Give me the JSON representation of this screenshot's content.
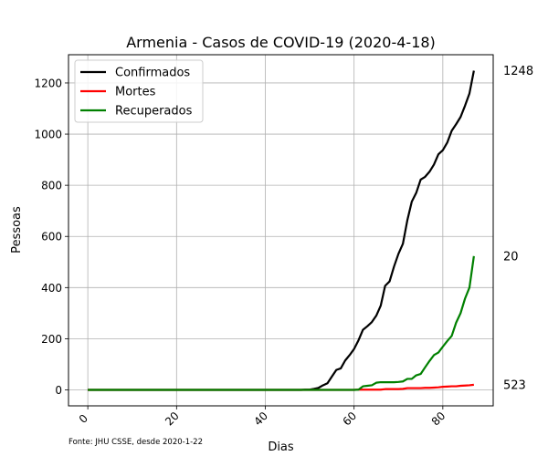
{
  "chart_data": {
    "type": "line",
    "title": "Armenia - Casos de COVID-19 (2020-4-18)",
    "xlabel": "Dias",
    "ylabel": "Pessoas",
    "xlim": [
      -4.35,
      91.35
    ],
    "ylim": [
      -62.4,
      1310.4
    ],
    "xticks": [
      0,
      20,
      40,
      60,
      80
    ],
    "yticks": [
      0,
      200,
      400,
      600,
      800,
      1000,
      1200
    ],
    "grid": true,
    "legend_position": "top-left",
    "source_note": "Fonte: JHU CSSE, desde 2020-1-22",
    "end_labels": [
      "1248",
      "523",
      "20"
    ],
    "series": [
      {
        "name": "Confirmados",
        "color": "#000000",
        "x": [
          0,
          10,
          20,
          30,
          40,
          45,
          48,
          49,
          50,
          51,
          52,
          53,
          54,
          55,
          56,
          57,
          58,
          59,
          60,
          61,
          62,
          63,
          64,
          65,
          66,
          67,
          68,
          69,
          70,
          71,
          72,
          73,
          74,
          75,
          76,
          77,
          78,
          79,
          80,
          81,
          82,
          83,
          84,
          85,
          86,
          87
        ],
        "y": [
          0,
          0,
          0,
          0,
          0,
          0,
          0,
          1,
          1,
          4,
          8,
          18,
          26,
          52,
          78,
          84,
          115,
          136,
          160,
          194,
          235,
          249,
          265,
          290,
          329,
          407,
          424,
          482,
          532,
          571,
          663,
          736,
          770,
          822,
          833,
          853,
          881,
          921,
          937,
          967,
          1013,
          1039,
          1067,
          1111,
          1159,
          1248
        ]
      },
      {
        "name": "Mortes",
        "color": "#ff0000",
        "x": [
          0,
          60,
          61,
          62,
          63,
          64,
          65,
          66,
          67,
          68,
          69,
          70,
          71,
          72,
          73,
          74,
          75,
          76,
          77,
          78,
          79,
          80,
          81,
          82,
          83,
          84,
          85,
          86,
          87
        ],
        "y": [
          0,
          0,
          1,
          1,
          1,
          1,
          1,
          1,
          3,
          3,
          3,
          3,
          4,
          7,
          7,
          7,
          7,
          8,
          8,
          9,
          10,
          12,
          13,
          14,
          14,
          16,
          17,
          18,
          20
        ]
      },
      {
        "name": "Recuperados",
        "color": "#008000",
        "x": [
          0,
          60,
          61,
          62,
          63,
          64,
          65,
          66,
          67,
          68,
          69,
          70,
          71,
          72,
          73,
          74,
          75,
          76,
          77,
          78,
          79,
          80,
          81,
          82,
          83,
          84,
          85,
          86,
          87
        ],
        "y": [
          0,
          0,
          1,
          14,
          16,
          18,
          28,
          30,
          30,
          30,
          30,
          31,
          33,
          43,
          43,
          57,
          62,
          88,
          113,
          136,
          146,
          169,
          191,
          211,
          263,
          300,
          357,
          400,
          523
        ]
      }
    ]
  }
}
